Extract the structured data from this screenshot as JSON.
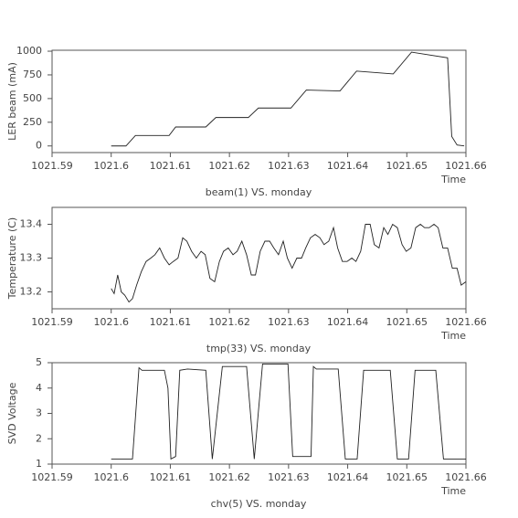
{
  "chart_data": [
    {
      "type": "line",
      "title": "beam(1) VS. monday",
      "xlabel": "Time",
      "ylabel": "LER beam (mA)",
      "xlim": [
        1021.59,
        1021.66
      ],
      "xticks": [
        1021.59,
        1021.6,
        1021.61,
        1021.62,
        1021.63,
        1021.64,
        1021.65,
        1021.66
      ],
      "ylim": [
        -70,
        1010
      ],
      "yticks": [
        0,
        250,
        500,
        750,
        1000
      ],
      "series": [
        {
          "color": "#222222",
          "x": [
            1021.6,
            1021.6025,
            1021.6041,
            1021.6098,
            1021.6109,
            1021.616,
            1021.6177,
            1021.6232,
            1021.6249,
            1021.6304,
            1021.633,
            1021.6387,
            1021.6415,
            1021.6477,
            1021.6508,
            1021.6569,
            1021.6576,
            1021.6585,
            1021.6597
          ],
          "values": [
            0,
            0,
            110,
            110,
            200,
            200,
            300,
            300,
            400,
            400,
            590,
            580,
            790,
            760,
            990,
            930,
            100,
            10,
            0
          ]
        }
      ]
    },
    {
      "type": "line",
      "title": "tmp(33) VS. monday",
      "xlabel": "Time",
      "ylabel": "Temperature (C)",
      "xlim": [
        1021.59,
        1021.66
      ],
      "xticks": [
        1021.59,
        1021.6,
        1021.61,
        1021.62,
        1021.63,
        1021.64,
        1021.65,
        1021.66
      ],
      "ylim": [
        13.15,
        13.45
      ],
      "yticks": [
        13.2,
        13.3,
        13.4
      ],
      "series": [
        {
          "color": "#222222",
          "x": [
            1021.6,
            1021.6005,
            1021.6011,
            1021.6017,
            1021.6023,
            1021.603,
            1021.6036,
            1021.6043,
            1021.6051,
            1021.6059,
            1021.6067,
            1021.6074,
            1021.6082,
            1021.609,
            1021.6098,
            1021.6105,
            1021.6113,
            1021.6121,
            1021.6128,
            1021.6136,
            1021.6144,
            1021.6152,
            1021.6159,
            1021.6167,
            1021.6175,
            1021.6183,
            1021.619,
            1021.6198,
            1021.6206,
            1021.6213,
            1021.6221,
            1021.6229,
            1021.6237,
            1021.6244,
            1021.6252,
            1021.626,
            1021.6268,
            1021.6275,
            1021.6283,
            1021.6291,
            1021.6298,
            1021.6306,
            1021.6314,
            1021.6322,
            1021.6329,
            1021.6337,
            1021.6345,
            1021.6353,
            1021.636,
            1021.6368,
            1021.6376,
            1021.6383,
            1021.6391,
            1021.6399,
            1021.6407,
            1021.6414,
            1021.6422,
            1021.643,
            1021.6438,
            1021.6445,
            1021.6453,
            1021.6461,
            1021.6468,
            1021.6476,
            1021.6484,
            1021.6492,
            1021.6499,
            1021.6507,
            1021.6515,
            1021.6523,
            1021.653,
            1021.6538,
            1021.6546,
            1021.6553,
            1021.6561,
            1021.6569,
            1021.6577,
            1021.6585,
            1021.6592,
            1021.66
          ],
          "values": [
            13.21,
            13.195,
            13.25,
            13.2,
            13.19,
            13.17,
            13.18,
            13.22,
            13.26,
            13.29,
            13.3,
            13.31,
            13.33,
            13.3,
            13.28,
            13.29,
            13.3,
            13.36,
            13.35,
            13.32,
            13.3,
            13.32,
            13.31,
            13.24,
            13.23,
            13.29,
            13.32,
            13.33,
            13.31,
            13.32,
            13.35,
            13.31,
            13.25,
            13.25,
            13.32,
            13.35,
            13.35,
            13.33,
            13.31,
            13.35,
            13.3,
            13.27,
            13.3,
            13.3,
            13.33,
            13.36,
            13.37,
            13.36,
            13.34,
            13.35,
            13.39,
            13.33,
            13.29,
            13.29,
            13.3,
            13.29,
            13.32,
            13.4,
            13.4,
            13.34,
            13.33,
            13.39,
            13.37,
            13.4,
            13.39,
            13.34,
            13.32,
            13.33,
            13.39,
            13.4,
            13.39,
            13.39,
            13.4,
            13.39,
            13.33,
            13.33,
            13.27,
            13.27,
            13.22,
            13.23
          ]
        }
      ]
    },
    {
      "type": "line",
      "title": "chv(5) VS. monday",
      "xlabel": "Time",
      "ylabel": "SVD Voltage",
      "xlim": [
        1021.59,
        1021.66
      ],
      "xticks": [
        1021.59,
        1021.6,
        1021.61,
        1021.62,
        1021.63,
        1021.64,
        1021.65,
        1021.66
      ],
      "ylim": [
        1,
        5
      ],
      "yticks": [
        1,
        2,
        3,
        4,
        5
      ],
      "series": [
        {
          "color": "#222222",
          "x": [
            1021.6,
            1021.6036,
            1021.6047,
            1021.6052,
            1021.609,
            1021.6096,
            1021.6101,
            1021.6109,
            1021.6116,
            1021.6129,
            1021.616,
            1021.6171,
            1021.6188,
            1021.6229,
            1021.6242,
            1021.6256,
            1021.6299,
            1021.6307,
            1021.6338,
            1021.6342,
            1021.6347,
            1021.6384,
            1021.6396,
            1021.6416,
            1021.6427,
            1021.6472,
            1021.6484,
            1021.6503,
            1021.6514,
            1021.6549,
            1021.6562,
            1021.66
          ],
          "values": [
            1.2,
            1.2,
            4.8,
            4.7,
            4.7,
            4.0,
            1.2,
            1.3,
            4.7,
            4.75,
            4.7,
            1.2,
            4.85,
            4.85,
            1.2,
            4.95,
            4.95,
            1.3,
            1.3,
            4.85,
            4.75,
            4.75,
            1.2,
            1.2,
            4.7,
            4.7,
            1.2,
            1.2,
            4.7,
            4.7,
            1.2,
            1.2
          ]
        }
      ]
    }
  ]
}
